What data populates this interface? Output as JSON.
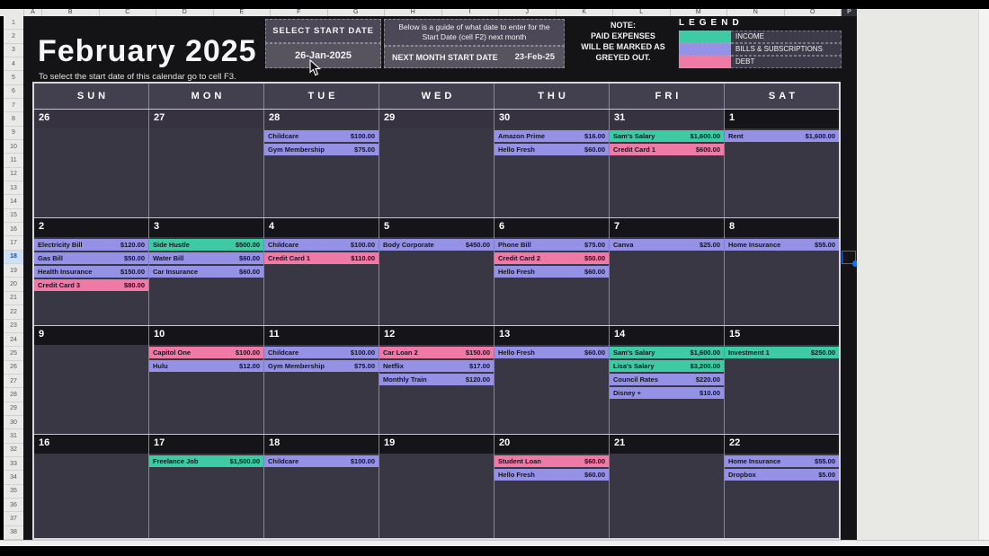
{
  "sheet": {
    "column_letters": [
      "A",
      "B",
      "C",
      "D",
      "E",
      "F",
      "G",
      "H",
      "I",
      "J",
      "K",
      "L",
      "M",
      "N",
      "O",
      "P"
    ],
    "row_count": 38,
    "selected_row": 18,
    "selected_column": "P"
  },
  "header": {
    "month_title": "February 2025",
    "hint": "To select the start date of this calendar go to cell F3.",
    "select_start_date": {
      "label": "SELECT START DATE",
      "value": "26-Jan-2025"
    },
    "guide": {
      "text": "Below is a guide of what date to enter for the Start Date (cell F2) next month",
      "next_label": "NEXT MONTH START DATE",
      "next_value": "23-Feb-25"
    },
    "note_lines": [
      "NOTE:",
      "PAID EXPENSES",
      "WILL BE MARKED AS",
      "GREYED OUT."
    ],
    "legend": {
      "title": "LEGEND",
      "items": [
        {
          "label": "INCOME",
          "type": "income"
        },
        {
          "label": "BILLS & SUBSCRIPTIONS",
          "type": "bills"
        },
        {
          "label": "DEBT",
          "type": "debt"
        }
      ]
    }
  },
  "calendar": {
    "day_headers": [
      "SUN",
      "MON",
      "TUE",
      "WED",
      "THU",
      "FRI",
      "SAT"
    ],
    "weeks": [
      {
        "days": [
          {
            "num": "26",
            "out": true,
            "entries": []
          },
          {
            "num": "27",
            "out": true,
            "entries": []
          },
          {
            "num": "28",
            "out": true,
            "entries": [
              {
                "name": "Childcare",
                "amount": "$100.00",
                "type": "bills"
              },
              {
                "name": "Gym Membership",
                "amount": "$75.00",
                "type": "bills"
              }
            ]
          },
          {
            "num": "29",
            "out": true,
            "entries": []
          },
          {
            "num": "30",
            "out": true,
            "entries": [
              {
                "name": "Amazon Prime",
                "amount": "$16.00",
                "type": "bills"
              },
              {
                "name": "Hello Fresh",
                "amount": "$60.00",
                "type": "bills"
              }
            ]
          },
          {
            "num": "31",
            "out": true,
            "entries": [
              {
                "name": "Sam's Salary",
                "amount": "$1,600.00",
                "type": "income"
              },
              {
                "name": "Credit Card 1",
                "amount": "$600.00",
                "type": "debt"
              }
            ]
          },
          {
            "num": "1",
            "out": false,
            "entries": [
              {
                "name": "Rent",
                "amount": "$1,600.00",
                "type": "bills"
              }
            ]
          }
        ]
      },
      {
        "days": [
          {
            "num": "2",
            "out": false,
            "entries": [
              {
                "name": "Electricity Bill",
                "amount": "$120.00",
                "type": "bills"
              },
              {
                "name": "Gas Bill",
                "amount": "$50.00",
                "type": "bills"
              },
              {
                "name": "Health Insurance",
                "amount": "$150.00",
                "type": "bills"
              },
              {
                "name": "Credit Card 3",
                "amount": "$80.00",
                "type": "debt"
              }
            ]
          },
          {
            "num": "3",
            "out": false,
            "entries": [
              {
                "name": "Side Hustle",
                "amount": "$500.00",
                "type": "income"
              },
              {
                "name": "Water Bill",
                "amount": "$60.00",
                "type": "bills"
              },
              {
                "name": "Car Insurance",
                "amount": "$60.00",
                "type": "bills"
              }
            ]
          },
          {
            "num": "4",
            "out": false,
            "entries": [
              {
                "name": "Childcare",
                "amount": "$100.00",
                "type": "bills"
              },
              {
                "name": "Credit Card 1",
                "amount": "$110.00",
                "type": "debt"
              }
            ]
          },
          {
            "num": "5",
            "out": false,
            "entries": [
              {
                "name": "Body Corporate",
                "amount": "$450.00",
                "type": "bills"
              }
            ]
          },
          {
            "num": "6",
            "out": false,
            "entries": [
              {
                "name": "Phone Bill",
                "amount": "$75.00",
                "type": "bills"
              },
              {
                "name": "Credit Card 2",
                "amount": "$50.00",
                "type": "debt"
              },
              {
                "name": "Hello Fresh",
                "amount": "$60.00",
                "type": "bills"
              }
            ]
          },
          {
            "num": "7",
            "out": false,
            "entries": [
              {
                "name": "Canva",
                "amount": "$25.00",
                "type": "bills"
              }
            ]
          },
          {
            "num": "8",
            "out": false,
            "entries": [
              {
                "name": "Home Insurance",
                "amount": "$55.00",
                "type": "bills"
              }
            ]
          }
        ]
      },
      {
        "days": [
          {
            "num": "9",
            "out": false,
            "entries": []
          },
          {
            "num": "10",
            "out": false,
            "entries": [
              {
                "name": "Capitol One",
                "amount": "$100.00",
                "type": "debt"
              },
              {
                "name": "Hulu",
                "amount": "$12.00",
                "type": "bills"
              }
            ]
          },
          {
            "num": "11",
            "out": false,
            "entries": [
              {
                "name": "Childcare",
                "amount": "$100.00",
                "type": "bills"
              },
              {
                "name": "Gym Membership",
                "amount": "$75.00",
                "type": "bills"
              }
            ]
          },
          {
            "num": "12",
            "out": false,
            "entries": [
              {
                "name": "Car Loan 2",
                "amount": "$150.00",
                "type": "debt"
              },
              {
                "name": "Netflix",
                "amount": "$17.00",
                "type": "bills"
              },
              {
                "name": "Monthly Train",
                "amount": "$120.00",
                "type": "bills"
              }
            ]
          },
          {
            "num": "13",
            "out": false,
            "entries": [
              {
                "name": "Hello Fresh",
                "amount": "$60.00",
                "type": "bills"
              }
            ]
          },
          {
            "num": "14",
            "out": false,
            "entries": [
              {
                "name": "Sam's Salary",
                "amount": "$1,600.00",
                "type": "income"
              },
              {
                "name": "Lisa's Salary",
                "amount": "$3,200.00",
                "type": "income"
              },
              {
                "name": "Council Rates",
                "amount": "$220.00",
                "type": "bills"
              },
              {
                "name": "Disney +",
                "amount": "$10.00",
                "type": "bills"
              }
            ]
          },
          {
            "num": "15",
            "out": false,
            "entries": [
              {
                "name": "Investment 1",
                "amount": "$250.00",
                "type": "income"
              }
            ]
          }
        ]
      },
      {
        "days": [
          {
            "num": "16",
            "out": false,
            "entries": []
          },
          {
            "num": "17",
            "out": false,
            "entries": [
              {
                "name": "Freelance Job",
                "amount": "$1,500.00",
                "type": "income"
              }
            ]
          },
          {
            "num": "18",
            "out": false,
            "entries": [
              {
                "name": "Childcare",
                "amount": "$100.00",
                "type": "bills"
              }
            ]
          },
          {
            "num": "19",
            "out": false,
            "entries": []
          },
          {
            "num": "20",
            "out": false,
            "entries": [
              {
                "name": "Student Loan",
                "amount": "$60.00",
                "type": "debt"
              },
              {
                "name": "Hello Fresh",
                "amount": "$60.00",
                "type": "bills"
              }
            ]
          },
          {
            "num": "21",
            "out": false,
            "entries": []
          },
          {
            "num": "22",
            "out": false,
            "entries": [
              {
                "name": "Home Insurance",
                "amount": "$55.00",
                "type": "bills"
              },
              {
                "name": "Dropbox",
                "amount": "$5.00",
                "type": "bills"
              }
            ]
          }
        ]
      }
    ]
  },
  "colors": {
    "income": "#3ecba4",
    "bills": "#9591e6",
    "debt": "#f07aa6",
    "selection": "#1a6ff2"
  }
}
